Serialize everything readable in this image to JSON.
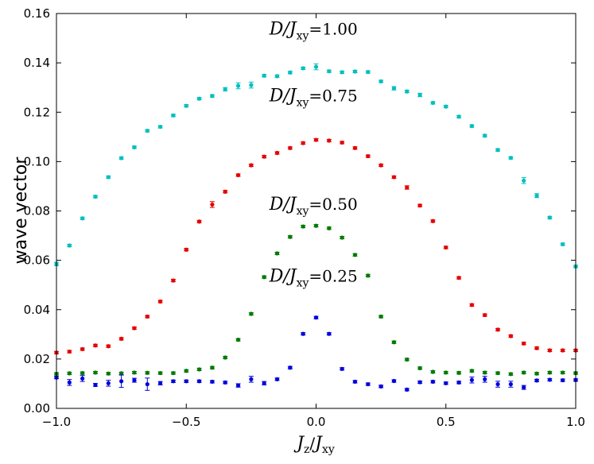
{
  "chart_data": {
    "type": "scatter",
    "title": "",
    "xlabel": "J_z/J_xy",
    "ylabel": "wave vector",
    "xlim": [
      -1.0,
      1.0
    ],
    "ylim": [
      0.0,
      0.16
    ],
    "xticks": [
      -1.0,
      -0.5,
      0.0,
      0.5,
      1.0
    ],
    "xtick_labels": [
      "−1.0",
      "−0.5",
      "0.0",
      "0.5",
      "1.0"
    ],
    "yticks": [
      0.0,
      0.02,
      0.04,
      0.06,
      0.08,
      0.1,
      0.12,
      0.14,
      0.16
    ],
    "ytick_labels": [
      "0.00",
      "0.02",
      "0.04",
      "0.06",
      "0.08",
      "0.10",
      "0.12",
      "0.14",
      "0.16"
    ],
    "grid": false,
    "x": [
      -1.0,
      -0.95,
      -0.9,
      -0.85,
      -0.8,
      -0.75,
      -0.7,
      -0.65,
      -0.6,
      -0.55,
      -0.5,
      -0.45,
      -0.4,
      -0.35,
      -0.3,
      -0.25,
      -0.2,
      -0.15,
      -0.1,
      -0.05,
      0.0,
      0.05,
      0.1,
      0.15,
      0.2,
      0.25,
      0.3,
      0.35,
      0.4,
      0.45,
      0.5,
      0.55,
      0.6,
      0.65,
      0.7,
      0.75,
      0.8,
      0.85,
      0.9,
      0.95,
      1.0
    ],
    "series": [
      {
        "name": "D/J_xy=1.00",
        "label_prefix": "D/J",
        "label_sub": "xy",
        "label_value": "=1.00",
        "color": "#00bfbf",
        "label_at": [
          -0.18,
          0.1515
        ],
        "values": [
          0.0585,
          0.066,
          0.077,
          0.0858,
          0.0937,
          0.1014,
          0.1058,
          0.1125,
          0.1141,
          0.1187,
          0.1226,
          0.1255,
          0.1266,
          0.1293,
          0.1307,
          0.131,
          0.1348,
          0.1346,
          0.1361,
          0.1378,
          0.1384,
          0.1366,
          0.1362,
          0.1365,
          0.1363,
          0.1325,
          0.1297,
          0.1284,
          0.127,
          0.1238,
          0.1223,
          0.1182,
          0.1144,
          0.1105,
          0.1047,
          0.1015,
          0.0923,
          0.0862,
          0.0773,
          0.0665,
          0.0575
        ],
        "errors": [
          0.0007,
          0.0005,
          0.0005,
          0.0005,
          0.0005,
          0.0005,
          0.0005,
          0.0005,
          0.0005,
          0.0005,
          0.0005,
          0.0005,
          0.0005,
          0.0007,
          0.0012,
          0.0012,
          0.0005,
          0.0005,
          0.0005,
          0.0005,
          0.0012,
          0.0005,
          0.0005,
          0.0005,
          0.0005,
          0.0005,
          0.0007,
          0.0005,
          0.0007,
          0.0005,
          0.0005,
          0.0005,
          0.0005,
          0.0005,
          0.0005,
          0.0005,
          0.0012,
          0.0008,
          0.0005,
          0.0005,
          0.0005
        ]
      },
      {
        "name": "D/J_xy=0.75",
        "label_prefix": "D/J",
        "label_sub": "xy",
        "label_value": "=0.75",
        "color": "#e60000",
        "label_at": [
          -0.18,
          0.1245
        ],
        "values": [
          0.0226,
          0.023,
          0.024,
          0.0255,
          0.0252,
          0.0282,
          0.0325,
          0.0372,
          0.0433,
          0.0518,
          0.0643,
          0.0757,
          0.0826,
          0.0878,
          0.0945,
          0.0985,
          0.102,
          0.1035,
          0.1055,
          0.1075,
          0.1088,
          0.1085,
          0.1077,
          0.1055,
          0.1022,
          0.0985,
          0.0937,
          0.0895,
          0.0822,
          0.0759,
          0.0652,
          0.0529,
          0.0419,
          0.0378,
          0.0319,
          0.0293,
          0.0263,
          0.0244,
          0.0235,
          0.0235,
          0.0235
        ],
        "errors": [
          0.0005,
          0.0005,
          0.0005,
          0.0005,
          0.0005,
          0.0005,
          0.0005,
          0.0005,
          0.0005,
          0.0005,
          0.0005,
          0.0005,
          0.0012,
          0.0005,
          0.0005,
          0.0005,
          0.0005,
          0.0005,
          0.0005,
          0.0005,
          0.0005,
          0.0005,
          0.0005,
          0.0005,
          0.0005,
          0.0005,
          0.0005,
          0.0007,
          0.0005,
          0.0005,
          0.0005,
          0.0005,
          0.0005,
          0.0005,
          0.0005,
          0.0005,
          0.0005,
          0.0005,
          0.0005,
          0.0005,
          0.0005
        ]
      },
      {
        "name": "D/J_xy=0.50",
        "label_prefix": "D/J",
        "label_sub": "xy",
        "label_value": "=0.50",
        "color": "#007a00",
        "label_at": [
          -0.18,
          0.0805
        ],
        "values": [
          0.014,
          0.0142,
          0.0143,
          0.0145,
          0.0141,
          0.0142,
          0.0145,
          0.0144,
          0.0143,
          0.0143,
          0.0152,
          0.0158,
          0.0165,
          0.0206,
          0.0278,
          0.0383,
          0.0532,
          0.0628,
          0.0695,
          0.0737,
          0.074,
          0.073,
          0.0692,
          0.0622,
          0.0538,
          0.0372,
          0.0268,
          0.0198,
          0.0163,
          0.0148,
          0.0145,
          0.0144,
          0.0152,
          0.0145,
          0.0143,
          0.0139,
          0.0145,
          0.0141,
          0.0145,
          0.0145,
          0.0143
        ],
        "errors": [
          0.0005,
          0.0005,
          0.0005,
          0.0005,
          0.0005,
          0.0005,
          0.0005,
          0.0005,
          0.0005,
          0.0005,
          0.0005,
          0.0005,
          0.0005,
          0.0005,
          0.0005,
          0.0005,
          0.0005,
          0.0005,
          0.0005,
          0.0005,
          0.0005,
          0.0005,
          0.0005,
          0.0005,
          0.0005,
          0.0005,
          0.0005,
          0.0005,
          0.0005,
          0.0005,
          0.0005,
          0.0005,
          0.0005,
          0.0005,
          0.0005,
          0.0005,
          0.0005,
          0.0005,
          0.0005,
          0.0005,
          0.0005
        ]
      },
      {
        "name": "D/J_xy=0.25",
        "label_prefix": "D/J",
        "label_sub": "xy",
        "label_value": "=0.25",
        "color": "#0000dd",
        "label_at": [
          -0.18,
          0.0513
        ],
        "values": [
          0.0125,
          0.0105,
          0.0121,
          0.0095,
          0.0102,
          0.011,
          0.0114,
          0.0098,
          0.0102,
          0.011,
          0.011,
          0.011,
          0.0108,
          0.0105,
          0.0093,
          0.0118,
          0.0102,
          0.0118,
          0.0165,
          0.0302,
          0.0368,
          0.0302,
          0.016,
          0.0108,
          0.0098,
          0.0089,
          0.0111,
          0.0076,
          0.0106,
          0.0108,
          0.0102,
          0.0105,
          0.0115,
          0.0118,
          0.0098,
          0.0098,
          0.0085,
          0.0113,
          0.0116,
          0.0114,
          0.0115
        ],
        "errors": [
          0.0005,
          0.0012,
          0.0012,
          0.0006,
          0.0012,
          0.0025,
          0.0008,
          0.0025,
          0.0007,
          0.0005,
          0.0005,
          0.0005,
          0.0005,
          0.0005,
          0.0007,
          0.0012,
          0.0007,
          0.0005,
          0.0005,
          0.0005,
          0.0005,
          0.0005,
          0.0005,
          0.0005,
          0.0005,
          0.0005,
          0.0005,
          0.0005,
          0.0005,
          0.0005,
          0.0005,
          0.0005,
          0.0012,
          0.0012,
          0.0012,
          0.0012,
          0.0008,
          0.0005,
          0.0005,
          0.0005,
          0.0005
        ]
      }
    ]
  }
}
